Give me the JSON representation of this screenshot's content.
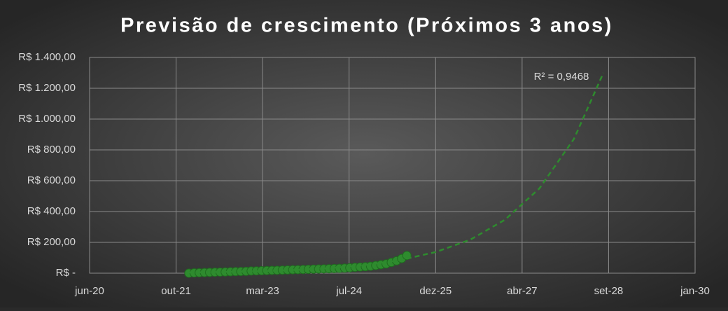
{
  "chart_data": {
    "type": "scatter",
    "title": "Previsão de crescimento (Próximos 3 anos)",
    "annotations": [
      "R² = 0,9468"
    ],
    "xlim": [
      44000,
      47500
    ],
    "xticks": [
      {
        "value": 44000,
        "label": "jun-20"
      },
      {
        "value": 44500,
        "label": "out-21"
      },
      {
        "value": 45000,
        "label": "mar-23"
      },
      {
        "value": 45500,
        "label": "jul-24"
      },
      {
        "value": 46000,
        "label": "dez-25"
      },
      {
        "value": 46500,
        "label": "abr-27"
      },
      {
        "value": 47000,
        "label": "set-28"
      },
      {
        "value": 47500,
        "label": "jan-30"
      }
    ],
    "ylim": [
      0,
      1400
    ],
    "yticks": [
      {
        "value": 0,
        "label": "R$ -"
      },
      {
        "value": 200,
        "label": "R$ 200,00"
      },
      {
        "value": 400,
        "label": "R$ 400,00"
      },
      {
        "value": 600,
        "label": "R$ 600,00"
      },
      {
        "value": 800,
        "label": "R$ 800,00"
      },
      {
        "value": 1000,
        "label": "R$ 1.000,00"
      },
      {
        "value": 1200,
        "label": "R$ 1.200,00"
      },
      {
        "value": 1400,
        "label": "R$ 1.400,00"
      }
    ],
    "grid": true,
    "series": [
      {
        "type": "scatter",
        "color": "#2e8b2e",
        "x": [
          44574,
          44604,
          44634,
          44664,
          44694,
          44724,
          44754,
          44784,
          44814,
          44844,
          44874,
          44904,
          44934,
          44964,
          44994,
          45024,
          45054,
          45084,
          45114,
          45144,
          45174,
          45204,
          45234,
          45264,
          45294,
          45324,
          45354,
          45384,
          45414,
          45444,
          45474,
          45504,
          45534,
          45564,
          45594,
          45624,
          45654,
          45684,
          45714,
          45744,
          45774,
          45804,
          45834
        ],
        "values": [
          0,
          2,
          3,
          4,
          5,
          6,
          7,
          8,
          9,
          10,
          11,
          12,
          14,
          15,
          16,
          17,
          18,
          19,
          20,
          21,
          22,
          23,
          24,
          25,
          26,
          27,
          28,
          29,
          30,
          31,
          33,
          35,
          38,
          40,
          42,
          45,
          50,
          55,
          60,
          70,
          80,
          95,
          115
        ]
      },
      {
        "type": "line",
        "color": "#2e8b2e",
        "line_style": "dashed",
        "x": [
          44574,
          44800,
          45000,
          45200,
          45400,
          45600,
          45800,
          46000,
          46200,
          46400,
          46600,
          46800,
          46970
        ],
        "values": [
          5,
          8.4,
          13.4,
          21.4,
          34,
          54,
          86,
          137,
          217,
          346,
          550,
          872,
          1300
        ]
      }
    ]
  }
}
